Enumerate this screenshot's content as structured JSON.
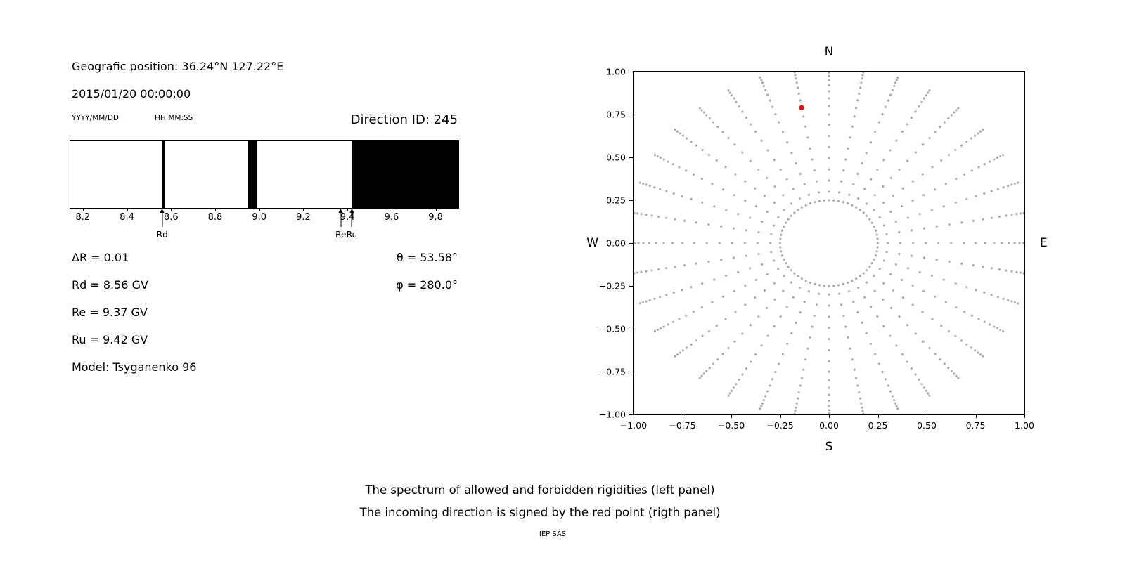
{
  "header": {
    "geo_position": "Geografic position: 36.24°N 127.22°E",
    "datetime": "2015/01/20 00:00:00",
    "date_format": "YYYY/MM/DD",
    "time_format": "HH:MM:SS",
    "direction_id": "Direction ID: 245"
  },
  "left_panel": {
    "delta_r": "ΔR = 0.01",
    "rd": "Rd = 8.56 GV",
    "re": "Re = 9.37 GV",
    "ru": "Ru = 9.42 GV",
    "model": "Model: Tsyganenko 96",
    "theta": "θ = 53.58°",
    "phi": "φ = 280.0°"
  },
  "captions": {
    "line1": "The spectrum of allowed and forbidden rigidities (left panel)",
    "line2": "The incoming direction is signed by the red point (rigth panel)",
    "credit": "IEP SAS"
  },
  "chart_data": [
    {
      "name": "rigidity-spectrum",
      "type": "bar",
      "title": "",
      "xlabel": "",
      "ylabel": "",
      "xlim": [
        8.14,
        9.9
      ],
      "xticks": [
        {
          "v": 8.2,
          "label": "8.2"
        },
        {
          "v": 8.4,
          "label": "8.4"
        },
        {
          "v": 8.6,
          "label": "8.6"
        },
        {
          "v": 8.8,
          "label": "8.8"
        },
        {
          "v": 9.0,
          "label": "9.0"
        },
        {
          "v": 9.2,
          "label": "9.2"
        },
        {
          "v": 9.4,
          "label": "9.4"
        },
        {
          "v": 9.6,
          "label": "9.6"
        },
        {
          "v": 9.8,
          "label": "9.8"
        }
      ],
      "forbidden_bands_gv": [
        [
          8.553,
          8.567
        ],
        [
          8.948,
          8.984
        ],
        [
          9.42,
          9.9
        ]
      ],
      "forbidden_color": "#000000",
      "allowed_color": "#ffffff",
      "annotations": [
        {
          "label": "Rd",
          "x": 8.56
        },
        {
          "label": "Re",
          "x": 9.37
        },
        {
          "label": "Ru",
          "x": 9.42
        }
      ]
    },
    {
      "name": "incoming-direction",
      "type": "scatter",
      "xlim": [
        -1,
        1
      ],
      "ylim": [
        -1,
        1
      ],
      "xticks": [
        {
          "v": -1.0,
          "label": "−1.00"
        },
        {
          "v": -0.75,
          "label": "−0.75"
        },
        {
          "v": -0.5,
          "label": "−0.50"
        },
        {
          "v": -0.25,
          "label": "−0.25"
        },
        {
          "v": 0.0,
          "label": "0.00"
        },
        {
          "v": 0.25,
          "label": "0.25"
        },
        {
          "v": 0.5,
          "label": "0.50"
        },
        {
          "v": 0.75,
          "label": "0.75"
        },
        {
          "v": 1.0,
          "label": "1.00"
        }
      ],
      "yticks": [
        {
          "v": 1.0,
          "label": "1.00"
        },
        {
          "v": 0.75,
          "label": "0.75"
        },
        {
          "v": 0.5,
          "label": "0.50"
        },
        {
          "v": 0.25,
          "label": "0.25"
        },
        {
          "v": 0.0,
          "label": "0.00"
        },
        {
          "v": -0.25,
          "label": "−0.25"
        },
        {
          "v": -0.5,
          "label": "−0.50"
        },
        {
          "v": -0.75,
          "label": "−0.75"
        },
        {
          "v": -1.0,
          "label": "−1.00"
        }
      ],
      "compass": {
        "north": "N",
        "south": "S",
        "east": "E",
        "west": "W"
      },
      "grid_dots": {
        "color": "#909090",
        "opacity": 0.75,
        "dot_radius_px": 1.6,
        "inner_ring": {
          "radius": 0.25,
          "count": 64
        },
        "spokes": {
          "azimuth_step_deg": 10,
          "azimuth_count": 36,
          "radii": [
            0.3,
            0.365,
            0.43,
            0.495,
            0.56,
            0.625,
            0.69,
            0.75,
            0.8,
            0.845,
            0.885,
            0.92,
            0.95,
            0.975,
            0.995,
            1.012,
            1.028
          ]
        }
      },
      "red_point": {
        "x": -0.14,
        "y": 0.79,
        "color": "#ff0000",
        "radius_px": 3.5
      }
    }
  ]
}
